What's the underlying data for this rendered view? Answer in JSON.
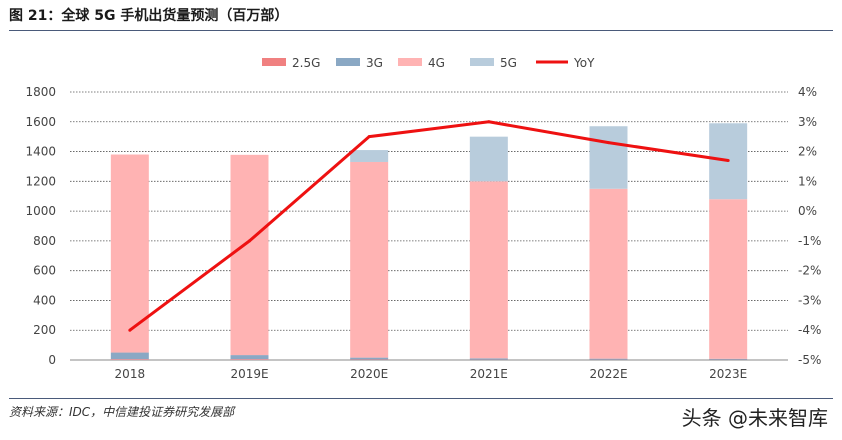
{
  "header": {
    "title": "图 21：全球 5G 手机出货量预测（百万部）"
  },
  "footer": {
    "source": "资料来源：IDC，中信建投证券研究发展部"
  },
  "watermark": {
    "text": "头条 @未来智库"
  },
  "chart_data": {
    "type": "bar",
    "stacked": true,
    "categories": [
      "2018",
      "2019E",
      "2020E",
      "2021E",
      "2022E",
      "2023E"
    ],
    "series": [
      {
        "name": "2.5G",
        "color": "#f08080",
        "values": [
          5,
          5,
          3,
          2,
          2,
          2
        ]
      },
      {
        "name": "3G",
        "color": "#8aa8c4",
        "values": [
          45,
          28,
          13,
          9,
          7,
          6
        ]
      },
      {
        "name": "4G",
        "color": "#ffb3b3",
        "values": [
          1330,
          1345,
          1314,
          1189,
          1141,
          1072
        ]
      },
      {
        "name": "5G",
        "color": "#b8ccdc",
        "values": [
          0,
          0,
          80,
          300,
          420,
          510
        ]
      }
    ],
    "line_series": {
      "name": "YoY",
      "color": "#ee1111",
      "axis": "right",
      "values": [
        -4.0,
        -1.0,
        2.5,
        3.0,
        2.3,
        1.7
      ]
    },
    "y_left": {
      "min": 0,
      "max": 1800,
      "step": 200,
      "ticks": [
        "0",
        "200",
        "400",
        "600",
        "800",
        "1000",
        "1200",
        "1400",
        "1600",
        "1800"
      ]
    },
    "y_right": {
      "min": -5,
      "max": 4,
      "step": 1,
      "ticks": [
        "-5%",
        "-4%",
        "-3%",
        "-2%",
        "-1%",
        "0%",
        "1%",
        "2%",
        "3%",
        "4%"
      ]
    },
    "legend": {
      "position": "top"
    },
    "grid": {
      "horizontal": true,
      "style": "dotted"
    }
  }
}
